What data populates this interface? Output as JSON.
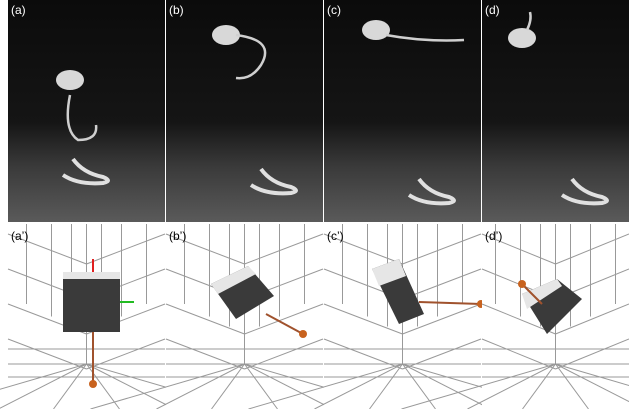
{
  "panels": {
    "top": [
      "(a)",
      "(b)",
      "(c)",
      "(d)"
    ],
    "bottom": [
      "(a’)",
      "(b’)",
      "(c’)",
      "(d’)"
    ]
  }
}
